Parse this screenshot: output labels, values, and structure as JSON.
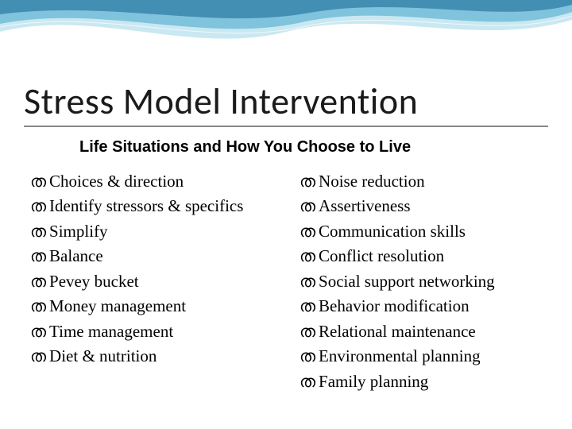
{
  "title": "Stress Model Intervention",
  "subtitle": "Life Situations and How You Choose to Live",
  "bullet_glyph": "ത",
  "colors": {
    "wave_light": "#c9e8f2",
    "wave_mid": "#6db9d6",
    "wave_dark": "#1a6d9a",
    "title_underline": "#888888",
    "text": "#000000",
    "background": "#ffffff"
  },
  "typography": {
    "title_fontsize": 46,
    "title_weight": 300,
    "subtitle_fontsize": 20,
    "subtitle_weight": 700,
    "item_fontsize": 21
  },
  "left_column": [
    "Choices & direction",
    "Identify stressors & specifics",
    "Simplify",
    "Balance",
    "Pevey bucket",
    "Money management",
    "Time management",
    "Diet & nutrition"
  ],
  "right_column": [
    "Noise reduction",
    "Assertiveness",
    "Communication skills",
    "Conflict resolution",
    "Social support networking",
    "Behavior modification",
    "Relational maintenance",
    "Environmental planning",
    "Family planning"
  ]
}
